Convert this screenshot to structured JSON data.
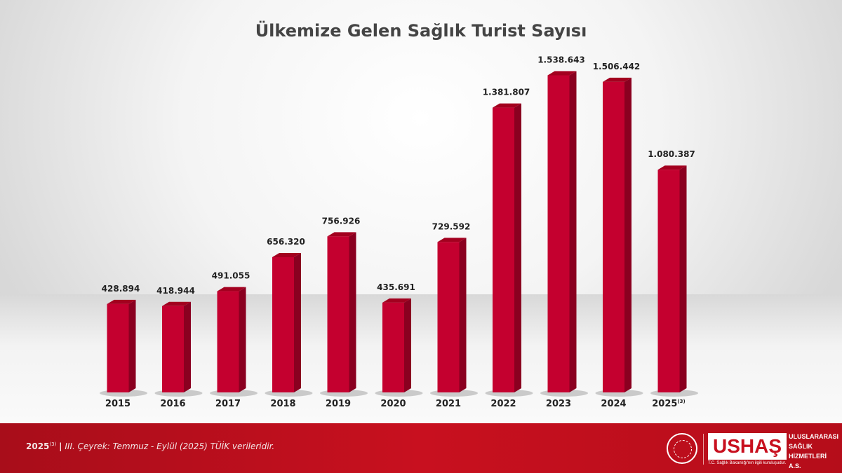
{
  "chart_data": {
    "type": "bar",
    "title": "Ülkemize Gelen Sağlık Turist Sayısı",
    "categories": [
      "2015",
      "2016",
      "2017",
      "2018",
      "2019",
      "2020",
      "2021",
      "2022",
      "2023",
      "2024",
      "2025"
    ],
    "category_superscripts": {
      "2025": "(3)"
    },
    "values": [
      428894,
      418944,
      491055,
      656320,
      756926,
      435691,
      729592,
      1381807,
      1538643,
      1506442,
      1080387
    ],
    "data_labels": [
      "428.894",
      "418.944",
      "491.055",
      "656.320",
      "756.926",
      "435.691",
      "729.592",
      "1.381.807",
      "1.538.643",
      "1.506.442",
      "1.080.387"
    ],
    "xlabel": "",
    "ylabel": "",
    "ylim": [
      0,
      1700000
    ],
    "grid": false,
    "legend": "none",
    "bar_color": "#c4002f",
    "bar_side_color": "#8a0020"
  },
  "footer": {
    "note_year": "2025",
    "note_sup": "(3)",
    "note_sep": "|",
    "note_text": "III. Çeyrek: Temmuz - Eylül (2025) TÜİK verileridir.",
    "logo_main": "USHAŞ",
    "logo_line1": "ULUSLARARASI",
    "logo_line2": "SAĞLIK",
    "logo_line3": "HİZMETLERİ A.S.",
    "logo_sub": "T.C. Sağlık Bakanlığı'nın ilgili kuruluşudur."
  }
}
